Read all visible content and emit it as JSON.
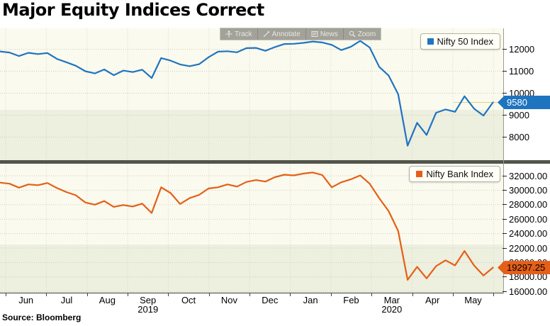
{
  "title": "Major Equity Indices Correct",
  "source": "Source: Bloomberg",
  "toolbar": {
    "items": [
      {
        "label": "Track"
      },
      {
        "label": "Annotate"
      },
      {
        "label": "News"
      },
      {
        "label": "Zoom"
      }
    ]
  },
  "colors": {
    "nifty50": "#1f74c0",
    "nifty_bank": "#e55f17",
    "band": "#edefdf",
    "plot_bg": "#fbfaee",
    "divider": "#51554b",
    "grid": "#ccccbe",
    "price_line": "#e3d37a"
  },
  "x_axis": {
    "months": [
      "Jun",
      "Jul",
      "Aug",
      "Sep",
      "Oct",
      "Nov",
      "Dec",
      "Jan",
      "Feb",
      "Mar",
      "Apr",
      "May"
    ],
    "years": [
      {
        "label": "2019",
        "month_index": 3
      },
      {
        "label": "2020",
        "month_index": 9
      }
    ]
  },
  "chart_data": [
    {
      "type": "line",
      "title": "Nifty 50 Index",
      "legend": "Nifty 50 Index",
      "color": "#1f74c0",
      "legend_position": "top-right",
      "grid": true,
      "x_range": "Jun 2019 - May 2020",
      "ylim": [
        7500,
        12450
      ],
      "y_ticks": [
        "12000",
        "11000",
        "10000",
        "9000",
        "8000"
      ],
      "y_tick_values": [
        12000,
        11000,
        10000,
        9000,
        8000
      ],
      "last_label": "9580",
      "last_value": 9580,
      "show_price_line": true,
      "values": [
        11900,
        11850,
        11690,
        11840,
        11780,
        11830,
        11560,
        11410,
        11250,
        11000,
        10900,
        11080,
        10820,
        11030,
        10960,
        11070,
        10690,
        11600,
        11480,
        11310,
        11230,
        11320,
        11640,
        11890,
        11910,
        11860,
        12050,
        12060,
        11930,
        12100,
        12240,
        12250,
        12290,
        12350,
        12310,
        12200,
        11960,
        12110,
        12380,
        12080,
        11200,
        10800,
        9950,
        7610,
        8650,
        8100,
        9110,
        9260,
        9150,
        9860,
        9300,
        8980,
        9580
      ]
    },
    {
      "type": "line",
      "title": "Nifty Bank Index",
      "legend": "Nifty Bank Index",
      "color": "#e55f17",
      "legend_position": "top-right",
      "grid": true,
      "x_range": "Jun 2019 - May 2020",
      "ylim": [
        15500,
        32900
      ],
      "y_ticks": [
        "32000.00",
        "30000.00",
        "28000.00",
        "26000.00",
        "24000.00",
        "22000.00",
        "20000.00",
        "18000.00",
        "16000.00"
      ],
      "y_tick_values": [
        32000,
        30000,
        28000,
        26000,
        24000,
        22000,
        20000,
        18000,
        16000
      ],
      "last_label": "19297.25",
      "last_value": 19297.25,
      "show_price_line": false,
      "values": [
        31050,
        30900,
        30350,
        30800,
        30700,
        31000,
        30300,
        29750,
        29300,
        28300,
        28000,
        28500,
        27700,
        27950,
        27750,
        28150,
        26850,
        30400,
        29600,
        28100,
        28900,
        29350,
        30250,
        30400,
        30800,
        30500,
        31150,
        31400,
        31200,
        31800,
        32150,
        32050,
        32300,
        32450,
        32100,
        30400,
        31100,
        31500,
        32050,
        30900,
        28900,
        27100,
        24350,
        17600,
        19400,
        17800,
        19500,
        20300,
        19600,
        21600,
        19600,
        18200,
        19297.25
      ]
    }
  ]
}
